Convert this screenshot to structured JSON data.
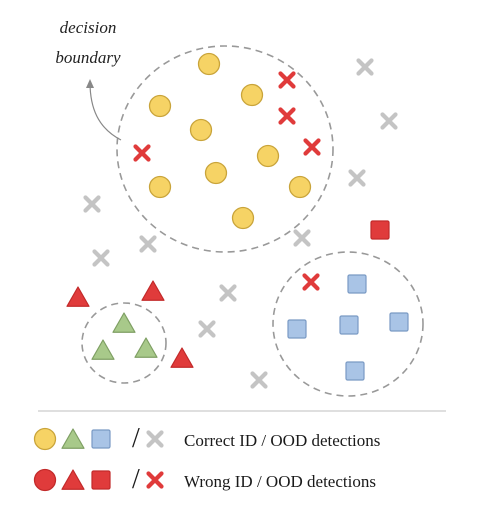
{
  "annotation": {
    "line1": "decision",
    "line2": "boundary"
  },
  "legend": {
    "correct_label": "Correct ID / OOD detections",
    "wrong_label": "Wrong ID / OOD detections",
    "separator": "/"
  },
  "colors": {
    "circle_fill": "#f6d365",
    "triangle_fill": "#a8c98a",
    "square_fill": "#a9c4e6",
    "ood_gray": "#c4c4c4",
    "wrong_red": "#e03b3b",
    "boundary": "#999999",
    "divider": "#cccccc"
  },
  "icons": {
    "id_circle": "circle",
    "id_triangle": "triangle",
    "id_square": "square",
    "ood": "x-cross",
    "arrow": "curved-arrow"
  }
}
